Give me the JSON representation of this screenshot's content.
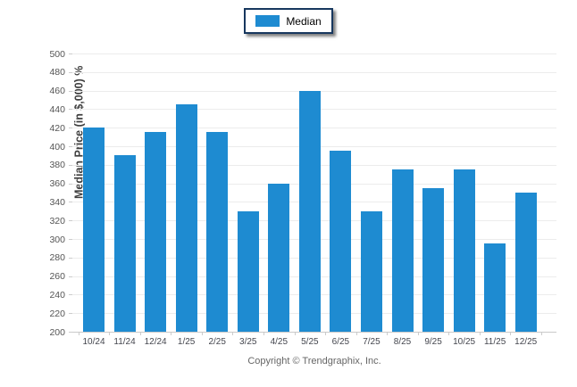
{
  "legend": {
    "label": "Median",
    "swatch_color": "#1e8bd1",
    "border_color": "#17375e"
  },
  "chart_data": {
    "type": "bar",
    "title": "",
    "series_name": "Median",
    "categories": [
      "10/24",
      "11/24",
      "12/24",
      "1/25",
      "2/25",
      "3/25",
      "4/25",
      "5/25",
      "6/25",
      "7/25",
      "8/25",
      "9/25",
      "10/25",
      "11/25",
      "12/25"
    ],
    "values": [
      420,
      390,
      415,
      445,
      415,
      330,
      360,
      460,
      395,
      330,
      375,
      355,
      375,
      295,
      350
    ],
    "xlabel": "",
    "ylabel": "Median Price (in $,000) %",
    "ylim": [
      200,
      500
    ],
    "ytick_step": 20,
    "grid": true,
    "legend_position": "top-center",
    "bar_color": "#1e8bd1",
    "gridline_color": "#ececec"
  },
  "footer": {
    "copyright": "Copyright © Trendgraphix, Inc."
  }
}
